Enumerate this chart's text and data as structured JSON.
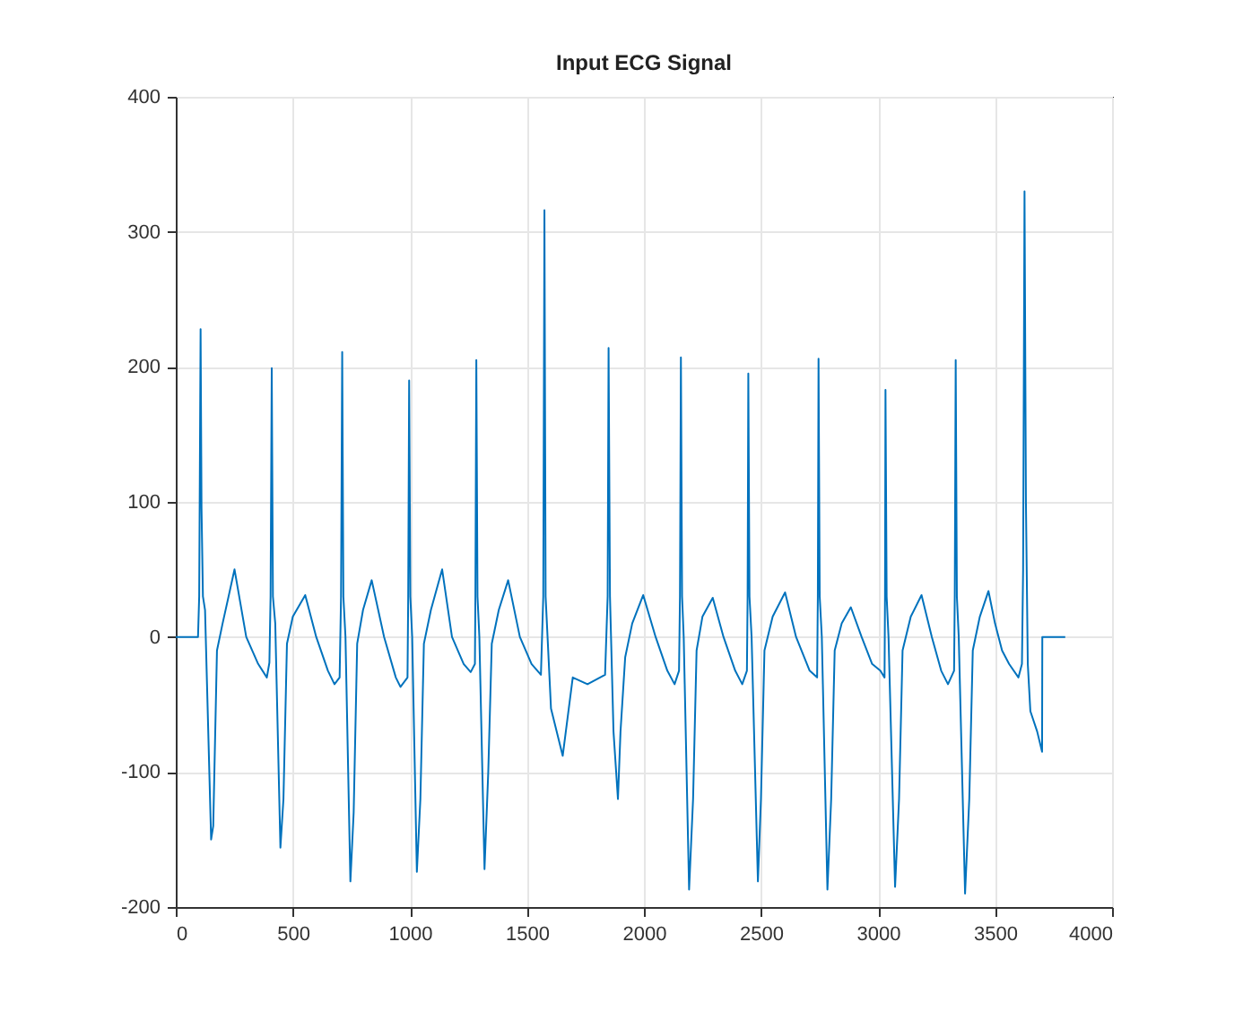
{
  "chart_data": {
    "type": "line",
    "title": "Input ECG Signal",
    "x": [
      0,
      95,
      100,
      106,
      110,
      116,
      125,
      151,
      160,
      176,
      200,
      251,
      301,
      352,
      389,
      400,
      405,
      410,
      415,
      425,
      447,
      460,
      475,
      500,
      553,
      600,
      650,
      678,
      700,
      706,
      711,
      716,
      725,
      746,
      760,
      775,
      800,
      837,
      890,
      940,
      960,
      990,
      993,
      997,
      1002,
      1010,
      1030,
      1045,
      1060,
      1090,
      1138,
      1180,
      1230,
      1260,
      1278,
      1280,
      1284,
      1289,
      1297,
      1319,
      1335,
      1350,
      1380,
      1420,
      1470,
      1520,
      1560,
      1570,
      1575,
      1580,
      1603,
      1653,
      1696,
      1759,
      1834,
      1845,
      1849,
      1855,
      1870,
      1889,
      1900,
      1920,
      1950,
      1997,
      2050,
      2100,
      2131,
      2150,
      2154,
      2158,
      2163,
      2170,
      2193,
      2210,
      2225,
      2250,
      2294,
      2340,
      2390,
      2420,
      2440,
      2443,
      2446,
      2451,
      2460,
      2487,
      2500,
      2515,
      2550,
      2603,
      2650,
      2708,
      2740,
      2743,
      2746,
      2751,
      2760,
      2784,
      2800,
      2815,
      2845,
      2884,
      2930,
      2975,
      3010,
      3028,
      3030,
      3032,
      3037,
      3045,
      3073,
      3090,
      3105,
      3140,
      3186,
      3230,
      3270,
      3299,
      3325,
      3328,
      3332,
      3337,
      3345,
      3372,
      3390,
      3405,
      3435,
      3472,
      3500,
      3530,
      3560,
      3600,
      3615,
      3620,
      3626,
      3632,
      3640,
      3651,
      3680,
      3701,
      3702,
      3800
    ],
    "series": [
      {
        "color": "#0072bd",
        "values": [
          0,
          0,
          30,
          228,
          95,
          30,
          20,
          -150,
          -140,
          -10,
          10,
          50,
          0,
          -20,
          -30,
          -19,
          30,
          199,
          30,
          10,
          -156,
          -120,
          -5,
          15,
          31,
          0,
          -25,
          -35,
          -30,
          30,
          211,
          30,
          0,
          -181,
          -130,
          -5,
          20,
          42,
          0,
          -30,
          -37,
          -30,
          30,
          190,
          30,
          0,
          -174,
          -120,
          -5,
          20,
          50,
          0,
          -20,
          -26,
          -20,
          30,
          205,
          30,
          0,
          -172,
          -100,
          -5,
          20,
          42,
          0,
          -20,
          -28,
          30,
          316,
          30,
          -53,
          -88,
          -30,
          -35,
          -28,
          30,
          214,
          30,
          -70,
          -120,
          -70,
          -15,
          10,
          31,
          0,
          -25,
          -35,
          -25,
          30,
          207,
          30,
          0,
          -187,
          -120,
          -10,
          15,
          29,
          0,
          -25,
          -35,
          -25,
          30,
          195,
          30,
          0,
          -181,
          -120,
          -10,
          15,
          33,
          0,
          -25,
          -30,
          30,
          206,
          30,
          0,
          -187,
          -120,
          -10,
          10,
          22,
          0,
          -20,
          -25,
          -30,
          30,
          183,
          30,
          0,
          -185,
          -120,
          -10,
          15,
          31,
          0,
          -25,
          -35,
          -25,
          30,
          205,
          30,
          0,
          -190,
          -120,
          -10,
          15,
          34,
          10,
          -10,
          -20,
          -30,
          -20,
          50,
          330,
          100,
          -20,
          -55,
          -70,
          -85,
          0,
          0
        ]
      }
    ],
    "xlim": [
      0,
      4000
    ],
    "xticks": [
      0,
      500,
      1000,
      1500,
      2000,
      2500,
      3000,
      3500,
      4000
    ],
    "ylim": [
      -200,
      400
    ],
    "yticks": [
      -200,
      -100,
      0,
      100,
      200,
      300,
      400
    ],
    "grid": true
  }
}
